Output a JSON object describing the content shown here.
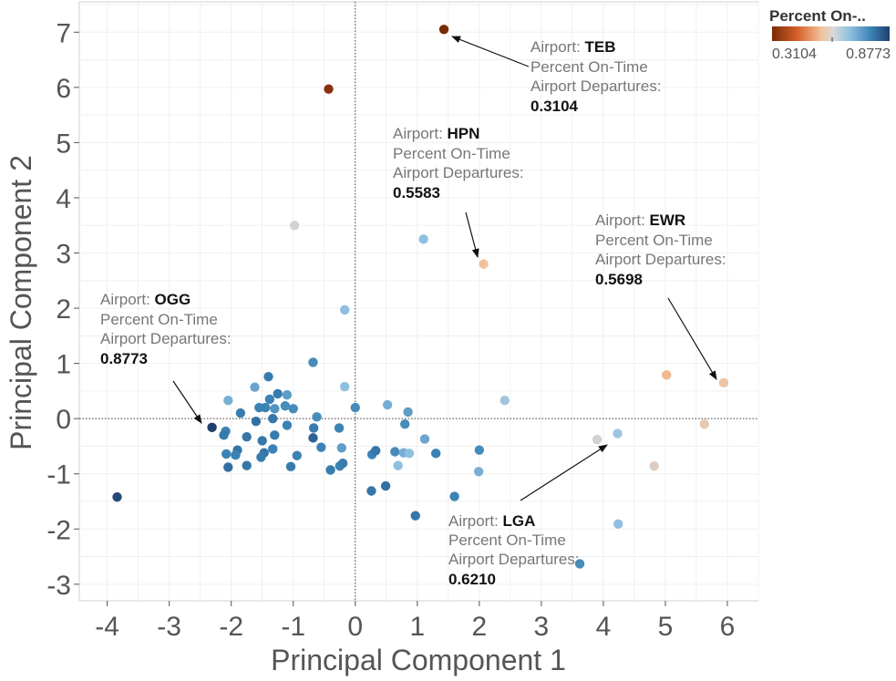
{
  "chart_data": {
    "type": "scatter",
    "xlabel": "Principal Component 1",
    "ylabel": "Principal Component 2",
    "xlim": [
      -4.45,
      6.5
    ],
    "ylim": [
      -3.3,
      7.55
    ],
    "x_ticks": [
      -4,
      -3,
      -2,
      -1,
      0,
      1,
      2,
      3,
      4,
      5,
      6
    ],
    "y_ticks": [
      -3,
      -2,
      -1,
      0,
      1,
      2,
      3,
      4,
      5,
      6,
      7
    ],
    "grid": true,
    "zero_lines": true,
    "legend": {
      "title": "Percent On-..",
      "min": 0.3104,
      "max": 0.8773,
      "min_label": "0.3104",
      "max_label": "0.8773",
      "placement": "top-right",
      "colors": [
        "#7a2a08",
        "#d8622a",
        "#f2c29b",
        "#d9d9d9",
        "#8fc0df",
        "#3b82b5",
        "#1f3f6e"
      ]
    },
    "points": [
      {
        "x": 1.43,
        "y": 7.05,
        "v": 0.3104
      },
      {
        "x": -0.43,
        "y": 5.97,
        "v": 0.33
      },
      {
        "x": -0.98,
        "y": 3.5,
        "v": 0.62
      },
      {
        "x": 1.1,
        "y": 3.25,
        "v": 0.7
      },
      {
        "x": 2.07,
        "y": 2.8,
        "v": 0.5583
      },
      {
        "x": -0.17,
        "y": 1.97,
        "v": 0.7
      },
      {
        "x": -0.68,
        "y": 1.02,
        "v": 0.76
      },
      {
        "x": -0.17,
        "y": 0.58,
        "v": 0.7
      },
      {
        "x": 0.52,
        "y": 0.25,
        "v": 0.72
      },
      {
        "x": 2.41,
        "y": 0.33,
        "v": 0.68
      },
      {
        "x": 5.02,
        "y": 0.79,
        "v": 0.55
      },
      {
        "x": 5.94,
        "y": 0.65,
        "v": 0.5698
      },
      {
        "x": 5.63,
        "y": -0.1,
        "v": 0.585
      },
      {
        "x": 4.23,
        "y": -0.27,
        "v": 0.68
      },
      {
        "x": 3.9,
        "y": -0.38,
        "v": 0.621
      },
      {
        "x": 4.82,
        "y": -0.86,
        "v": 0.6
      },
      {
        "x": 4.24,
        "y": -1.91,
        "v": 0.7
      },
      {
        "x": 3.62,
        "y": -2.63,
        "v": 0.76
      },
      {
        "x": -3.84,
        "y": -1.42,
        "v": 0.86
      },
      {
        "x": -2.31,
        "y": -0.16,
        "v": 0.8773
      },
      {
        "x": 0.0,
        "y": 0.2,
        "v": 0.76
      },
      {
        "x": -0.62,
        "y": 0.03,
        "v": 0.76
      },
      {
        "x": -0.67,
        "y": -0.17,
        "v": 0.78
      },
      {
        "x": -0.68,
        "y": -0.35,
        "v": 0.82
      },
      {
        "x": -0.55,
        "y": -0.52,
        "v": 0.77
      },
      {
        "x": -0.26,
        "y": -0.17,
        "v": 0.77
      },
      {
        "x": -0.22,
        "y": -0.53,
        "v": 0.74
      },
      {
        "x": -0.25,
        "y": -0.86,
        "v": 0.77
      },
      {
        "x": -0.4,
        "y": -0.93,
        "v": 0.78
      },
      {
        "x": -0.2,
        "y": -0.81,
        "v": 0.78
      },
      {
        "x": -0.94,
        "y": -0.67,
        "v": 0.77
      },
      {
        "x": -1.04,
        "y": -0.87,
        "v": 0.78
      },
      {
        "x": -1.1,
        "y": -0.12,
        "v": 0.77
      },
      {
        "x": -1.13,
        "y": 0.23,
        "v": 0.76
      },
      {
        "x": -1.0,
        "y": 0.18,
        "v": 0.76
      },
      {
        "x": -1.1,
        "y": 0.43,
        "v": 0.74
      },
      {
        "x": -1.25,
        "y": 0.45,
        "v": 0.78
      },
      {
        "x": -1.3,
        "y": 0.18,
        "v": 0.75
      },
      {
        "x": -1.33,
        "y": 0.0,
        "v": 0.79
      },
      {
        "x": -1.38,
        "y": 0.35,
        "v": 0.77
      },
      {
        "x": -1.4,
        "y": 0.76,
        "v": 0.78
      },
      {
        "x": -1.45,
        "y": 0.2,
        "v": 0.77
      },
      {
        "x": -1.55,
        "y": 0.2,
        "v": 0.77
      },
      {
        "x": -1.6,
        "y": -0.05,
        "v": 0.8
      },
      {
        "x": -1.62,
        "y": 0.57,
        "v": 0.73
      },
      {
        "x": -1.5,
        "y": -0.4,
        "v": 0.79
      },
      {
        "x": -1.3,
        "y": -0.3,
        "v": 0.78
      },
      {
        "x": -1.33,
        "y": -0.55,
        "v": 0.77
      },
      {
        "x": -1.47,
        "y": -0.62,
        "v": 0.79
      },
      {
        "x": -1.52,
        "y": -0.7,
        "v": 0.78
      },
      {
        "x": -1.75,
        "y": -0.33,
        "v": 0.79
      },
      {
        "x": -1.75,
        "y": -0.85,
        "v": 0.79
      },
      {
        "x": -1.85,
        "y": 0.1,
        "v": 0.78
      },
      {
        "x": -1.9,
        "y": -0.57,
        "v": 0.79
      },
      {
        "x": -1.93,
        "y": -0.66,
        "v": 0.77
      },
      {
        "x": -2.05,
        "y": 0.33,
        "v": 0.72
      },
      {
        "x": -2.09,
        "y": -0.23,
        "v": 0.77
      },
      {
        "x": -2.12,
        "y": -0.3,
        "v": 0.78
      },
      {
        "x": -2.08,
        "y": -0.64,
        "v": 0.77
      },
      {
        "x": -2.05,
        "y": -0.88,
        "v": 0.8
      },
      {
        "x": 0.27,
        "y": -0.65,
        "v": 0.77
      },
      {
        "x": 0.33,
        "y": -0.58,
        "v": 0.79
      },
      {
        "x": 0.26,
        "y": -1.31,
        "v": 0.79
      },
      {
        "x": 0.49,
        "y": -1.22,
        "v": 0.8
      },
      {
        "x": 0.64,
        "y": -0.6,
        "v": 0.76
      },
      {
        "x": 0.69,
        "y": -0.85,
        "v": 0.7
      },
      {
        "x": 0.78,
        "y": -0.62,
        "v": 0.72
      },
      {
        "x": 0.8,
        "y": -0.1,
        "v": 0.76
      },
      {
        "x": 0.85,
        "y": 0.12,
        "v": 0.74
      },
      {
        "x": 0.87,
        "y": -0.63,
        "v": 0.7
      },
      {
        "x": 1.12,
        "y": -0.37,
        "v": 0.73
      },
      {
        "x": 1.3,
        "y": -0.63,
        "v": 0.77
      },
      {
        "x": 0.97,
        "y": -1.76,
        "v": 0.79
      },
      {
        "x": 1.6,
        "y": -1.41,
        "v": 0.77
      },
      {
        "x": 1.99,
        "y": -0.96,
        "v": 0.72
      },
      {
        "x": 2.0,
        "y": -0.57,
        "v": 0.76
      }
    ],
    "annotations": [
      {
        "label": "Airport: ",
        "airport": "TEB",
        "measure_line1": "Percent On-Time",
        "measure_line2": "Airport Departures:",
        "value": "0.3104"
      },
      {
        "label": "Airport: ",
        "airport": "HPN",
        "measure_line1": "Percent On-Time",
        "measure_line2": "Airport Departures:",
        "value": "0.5583"
      },
      {
        "label": "Airport: ",
        "airport": "EWR",
        "measure_line1": "Percent On-Time",
        "measure_line2": "Airport Departures:",
        "value": "0.5698"
      },
      {
        "label": "Airport: ",
        "airport": "OGG",
        "measure_line1": "Percent On-Time",
        "measure_line2": "Airport Departures:",
        "value": "0.8773"
      },
      {
        "label": "Airport: ",
        "airport": "LGA",
        "measure_line1": "Percent On-Time",
        "measure_line2": "Airport Departures:",
        "value": "0.6210"
      }
    ]
  }
}
